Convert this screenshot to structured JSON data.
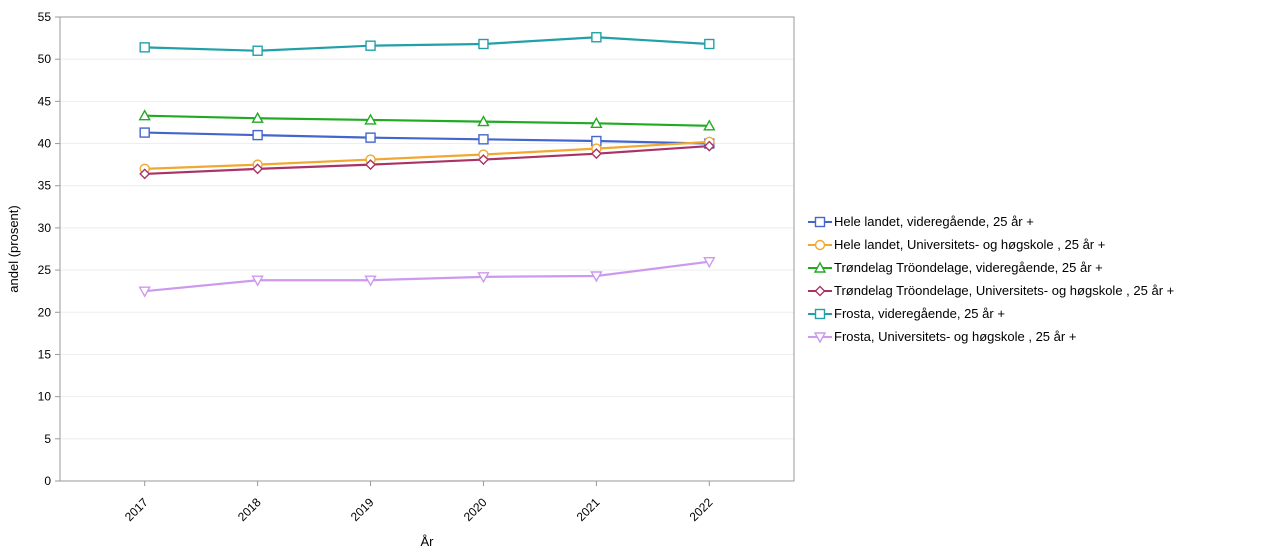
{
  "chart_data": {
    "type": "line",
    "title": "",
    "xlabel": "År",
    "ylabel": "andel (prosent)",
    "ylim": [
      0,
      55
    ],
    "yticks": [
      0,
      5,
      10,
      15,
      20,
      25,
      30,
      35,
      40,
      45,
      50,
      55
    ],
    "categories": [
      "2017",
      "2018",
      "2019",
      "2020",
      "2021",
      "2022"
    ],
    "grid": "horizontal",
    "legend_position": "right",
    "series": [
      {
        "name": "Hele landet, videregående, 25 år +",
        "color": "#4466cc",
        "marker": "square",
        "values": [
          41.3,
          41.0,
          40.7,
          40.5,
          40.3,
          40.0
        ]
      },
      {
        "name": "Hele landet, Universitets- og høgskole , 25 år +",
        "color": "#f0a830",
        "marker": "circle",
        "values": [
          37.0,
          37.5,
          38.1,
          38.7,
          39.4,
          40.2
        ]
      },
      {
        "name": "Trøndelag Tröondelage, videregående, 25 år +",
        "color": "#22aa22",
        "marker": "triangle",
        "values": [
          43.3,
          43.0,
          42.8,
          42.6,
          42.4,
          42.1
        ]
      },
      {
        "name": "Trøndelag Tröondelage, Universitets- og høgskole , 25 år +",
        "color": "#aa3366",
        "marker": "diamond",
        "values": [
          36.4,
          37.0,
          37.5,
          38.1,
          38.8,
          39.7
        ]
      },
      {
        "name": "Frosta, videregående, 25 år +",
        "color": "#22a0a8",
        "marker": "square",
        "values": [
          51.4,
          51.0,
          51.6,
          51.8,
          52.6,
          51.8
        ]
      },
      {
        "name": "Frosta, Universitets- og høgskole , 25 år +",
        "color": "#cc99ee",
        "marker": "triangle-down",
        "values": [
          22.5,
          23.8,
          23.8,
          24.2,
          24.3,
          26.0
        ]
      }
    ]
  }
}
